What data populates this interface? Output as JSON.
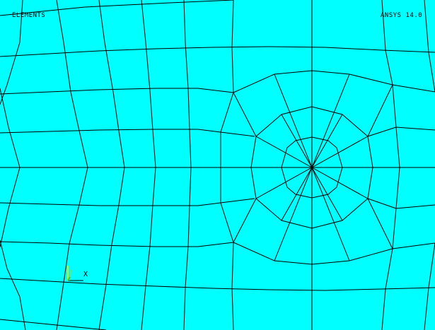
{
  "viewport": {
    "title": "ELEMENTS",
    "version": "ANSYS 14.0",
    "background_color": "#00ffff",
    "mesh_line_color": "#000000",
    "triad_color": "#ffff00"
  },
  "triad": {
    "x_label": "X"
  }
}
